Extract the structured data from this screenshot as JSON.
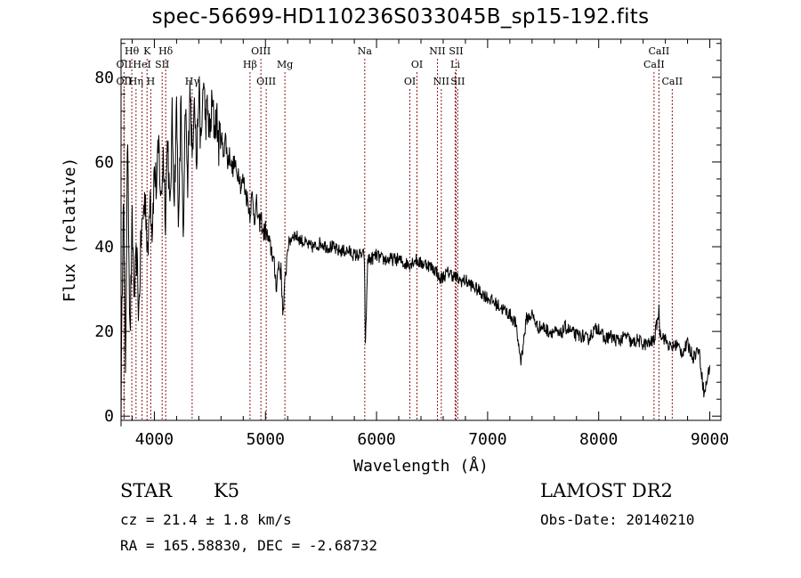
{
  "chart_data": {
    "type": "line",
    "title": "spec-56699-HD110236S033045B_sp15-192.fits",
    "xlabel": "Wavelength (Å)",
    "ylabel": "Flux (relative)",
    "xlim": [
      3700,
      9100
    ],
    "ylim": [
      -1,
      89
    ],
    "x_ticks": [
      4000,
      5000,
      6000,
      7000,
      8000,
      9000
    ],
    "y_ticks": [
      0,
      20,
      40,
      60,
      80
    ],
    "grid": false,
    "series_color": "#000000",
    "line_marker_color": "#8b1a1a",
    "series": [
      {
        "x": [
          3700,
          3720,
          3740,
          3760,
          3780,
          3800,
          3820,
          3840,
          3860,
          3880,
          3900,
          3920,
          3940,
          3960,
          3980,
          4000,
          4020,
          4040,
          4060,
          4080,
          4100,
          4120,
          4140,
          4160,
          4180,
          4200,
          4220,
          4240,
          4260,
          4280,
          4300,
          4320,
          4340,
          4360,
          4380,
          4400,
          4420,
          4440,
          4460,
          4480,
          4500,
          4520,
          4540,
          4560,
          4580,
          4600,
          4620,
          4640,
          4660,
          4680,
          4700,
          4720,
          4740,
          4760,
          4780,
          4800,
          4820,
          4840,
          4860,
          4880,
          4900,
          4920,
          4940,
          4960,
          4980,
          5000,
          5020,
          5040,
          5060,
          5080,
          5100,
          5120,
          5140,
          5160,
          5180,
          5200,
          5250,
          5300,
          5350,
          5400,
          5450,
          5500,
          5550,
          5600,
          5650,
          5700,
          5750,
          5800,
          5850,
          5890,
          5900,
          5920,
          5950,
          6000,
          6050,
          6100,
          6150,
          6200,
          6250,
          6300,
          6350,
          6400,
          6450,
          6500,
          6550,
          6563,
          6600,
          6650,
          6700,
          6750,
          6800,
          6850,
          6900,
          6950,
          7000,
          7050,
          7100,
          7150,
          7200,
          7250,
          7300,
          7350,
          7400,
          7450,
          7500,
          7550,
          7600,
          7650,
          7700,
          7750,
          7800,
          7850,
          7900,
          7950,
          8000,
          8050,
          8100,
          8150,
          8200,
          8250,
          8300,
          8350,
          8400,
          8450,
          8500,
          8542,
          8550,
          8600,
          8650,
          8700,
          8750,
          8800,
          8850,
          8900,
          8950,
          9000
        ],
        "y": [
          2,
          55,
          12,
          68,
          18,
          45,
          28,
          38,
          24,
          42,
          48,
          52,
          36,
          55,
          44,
          58,
          54,
          64,
          50,
          62,
          48,
          67,
          46,
          70,
          52,
          73,
          44,
          76,
          38,
          74,
          52,
          81,
          60,
          79,
          58,
          78,
          62,
          80,
          70,
          72,
          66,
          74,
          68,
          71,
          64,
          67,
          62,
          66,
          60,
          62,
          58,
          60,
          57,
          58,
          54,
          56,
          53,
          51,
          48,
          52,
          47,
          50,
          45,
          47,
          43,
          44,
          42,
          40,
          39,
          35,
          31,
          36,
          34,
          24,
          33,
          40,
          43,
          42,
          41,
          40,
          40,
          41,
          40,
          40,
          39,
          39,
          39,
          38,
          38,
          38,
          16,
          37,
          37,
          38,
          37,
          37,
          37,
          37,
          36,
          36,
          37,
          36,
          36,
          35,
          34,
          32,
          33,
          34,
          33,
          32,
          32,
          31,
          30,
          29,
          28,
          27,
          26,
          25,
          24,
          22,
          13,
          23,
          24,
          21,
          21,
          20,
          20,
          19,
          21,
          20,
          19,
          19,
          18,
          20,
          21,
          18,
          19,
          18,
          18,
          19,
          17,
          18,
          17,
          17,
          18,
          25,
          20,
          18,
          16,
          17,
          15,
          17,
          14,
          16,
          5,
          12
        ]
      }
    ],
    "lines": [
      {
        "label": "OII",
        "x": 3727,
        "row": 2
      },
      {
        "label": "OII",
        "x": 3727,
        "row": 3
      },
      {
        "label": "Hθ",
        "x": 3797,
        "row": 1
      },
      {
        "label": "Hη",
        "x": 3835,
        "row": 3
      },
      {
        "label": "HeI",
        "x": 3889,
        "row": 2
      },
      {
        "label": "K",
        "x": 3934,
        "row": 1
      },
      {
        "label": "H",
        "x": 3968,
        "row": 3
      },
      {
        "label": "SII",
        "x": 4070,
        "row": 2
      },
      {
        "label": "Hδ",
        "x": 4102,
        "row": 1
      },
      {
        "label": "Hγ",
        "x": 4340,
        "row": 3
      },
      {
        "label": "Hβ",
        "x": 4861,
        "row": 2
      },
      {
        "label": "OIII",
        "x": 4959,
        "row": 1
      },
      {
        "label": "OIII",
        "x": 5007,
        "row": 3
      },
      {
        "label": "Mg",
        "x": 5175,
        "row": 2
      },
      {
        "label": "Na",
        "x": 5894,
        "row": 1
      },
      {
        "label": "OI",
        "x": 6300,
        "row": 3
      },
      {
        "label": "OI",
        "x": 6364,
        "row": 2
      },
      {
        "label": "NII",
        "x": 6548,
        "row": 1
      },
      {
        "label": "NII",
        "x": 6583,
        "row": 3
      },
      {
        "label": "Li",
        "x": 6708,
        "row": 2
      },
      {
        "label": "SII",
        "x": 6716,
        "row": 1
      },
      {
        "label": "SII",
        "x": 6731,
        "row": 3
      },
      {
        "label": "CaII",
        "x": 8498,
        "row": 2
      },
      {
        "label": "CaII",
        "x": 8542,
        "row": 1
      },
      {
        "label": "CaII",
        "x": 8662,
        "row": 3
      }
    ]
  },
  "info": {
    "class": "STAR",
    "subclass": "K5",
    "survey": "LAMOST DR2",
    "cz": "cz = 21.4 ± 1.8 km/s",
    "obs_date": "Obs-Date: 20140210",
    "coords": "RA = 165.58830, DEC =  -2.68732"
  }
}
